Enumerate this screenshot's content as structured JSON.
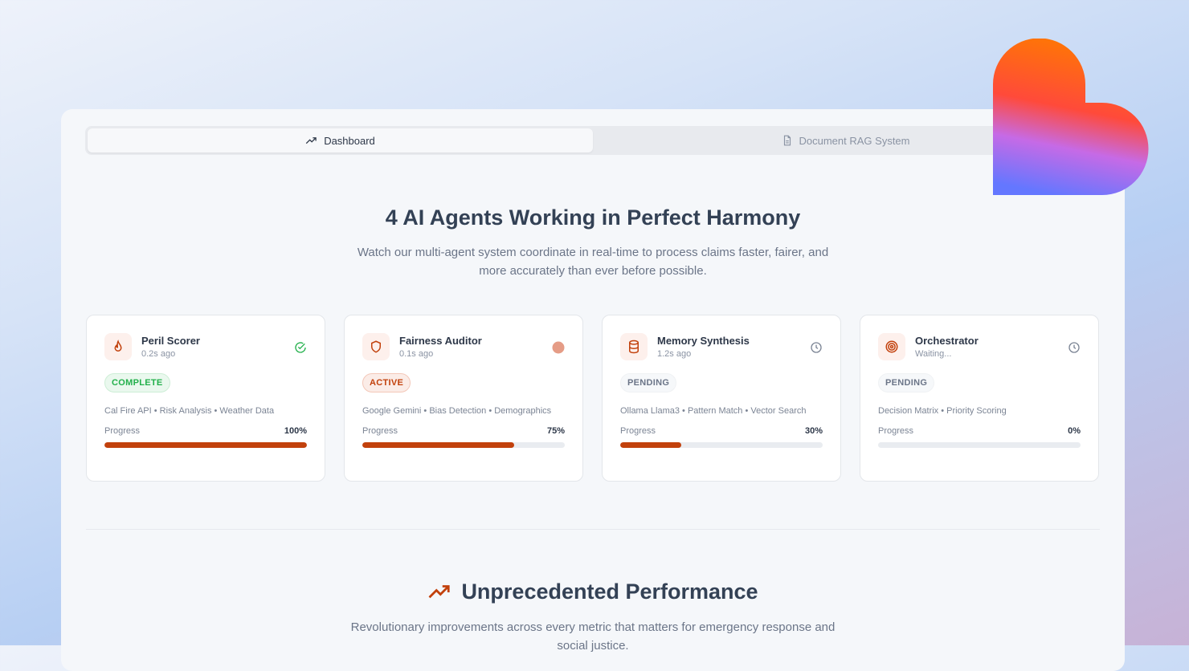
{
  "tabs": [
    {
      "label": "Dashboard",
      "icon": "trending-up-icon",
      "active": true
    },
    {
      "label": "Document RAG System",
      "icon": "file-text-icon",
      "active": false
    }
  ],
  "hero": {
    "title": "4 AI Agents Working in Perfect Harmony",
    "subtitle": "Watch our multi-agent system coordinate in real-time to process claims faster, fairer, and more accurately than ever before possible."
  },
  "agents": [
    {
      "name": "Peril Scorer",
      "time": "0.2s ago",
      "icon": "flame-icon",
      "status": "COMPLETE",
      "status_icon": "check-circle-icon",
      "tags": "Cal Fire API • Risk Analysis • Weather Data",
      "progress_label": "Progress",
      "progress": 100,
      "progress_text": "100%"
    },
    {
      "name": "Fairness Auditor",
      "time": "0.1s ago",
      "icon": "shield-icon",
      "status": "ACTIVE",
      "status_icon": "active-dot-icon",
      "tags": "Google Gemini • Bias Detection • Demographics",
      "progress_label": "Progress",
      "progress": 75,
      "progress_text": "75%"
    },
    {
      "name": "Memory Synthesis",
      "time": "1.2s ago",
      "icon": "database-icon",
      "status": "PENDING",
      "status_icon": "clock-icon",
      "tags": "Ollama Llama3 • Pattern Match • Vector Search",
      "progress_label": "Progress",
      "progress": 30,
      "progress_text": "30%"
    },
    {
      "name": "Orchestrator",
      "time": "Waiting...",
      "icon": "target-icon",
      "status": "PENDING",
      "status_icon": "clock-icon",
      "tags": "Decision Matrix • Priority Scoring",
      "progress_label": "Progress",
      "progress": 0,
      "progress_text": "0%"
    }
  ],
  "performance": {
    "title": "Unprecedented Performance",
    "subtitle": "Revolutionary improvements across every metric that matters for emergency response and social justice."
  },
  "colors": {
    "accent": "#c2410c",
    "complete": "#22b04b"
  }
}
